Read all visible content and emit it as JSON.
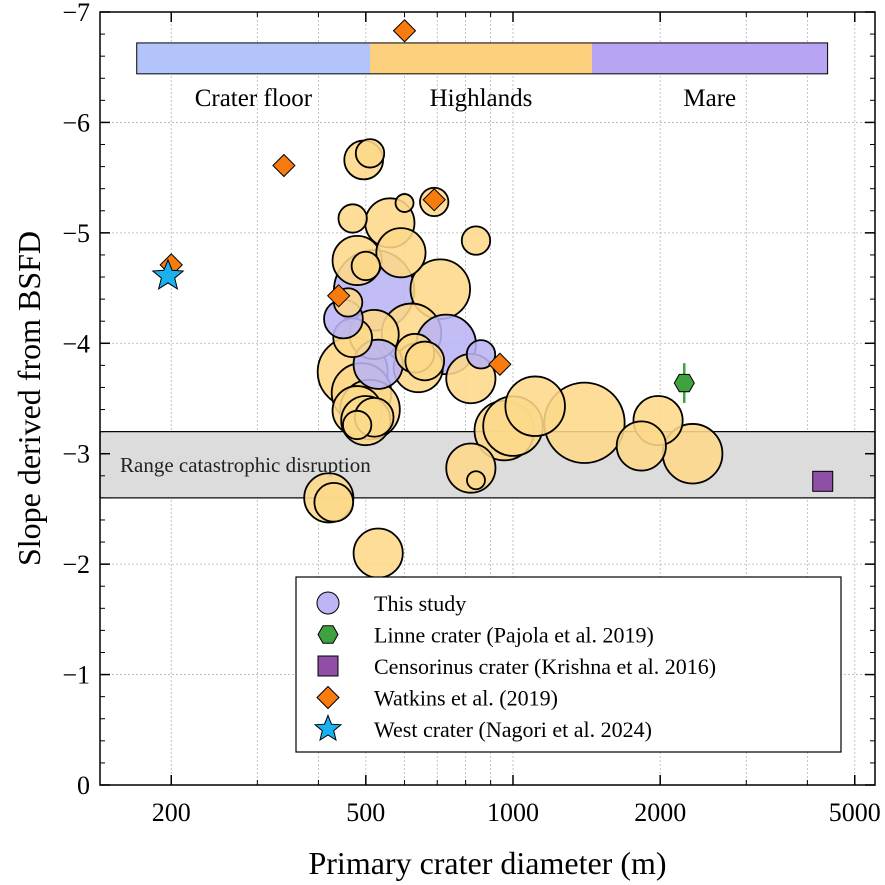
{
  "chart_data": {
    "type": "scatter",
    "title": "",
    "xlabel": "Primary crater diameter (m)",
    "ylabel": "Slope derived from BSFD",
    "xscale": "log",
    "xlim": [
      143,
      5500
    ],
    "ylim": [
      0,
      -7
    ],
    "y_inverted": true,
    "grid": true,
    "xticks": [
      200,
      500,
      1000,
      2000,
      5000
    ],
    "xtick_labels": [
      "200",
      "500",
      "1000",
      "2000",
      "5000"
    ],
    "yticks": [
      0,
      -1,
      -2,
      -3,
      -4,
      -5,
      -6,
      -7
    ],
    "ytick_labels": [
      "0",
      "−1",
      "−2",
      "−3",
      "−4",
      "−5",
      "−6",
      "−7"
    ],
    "terrain_bands": [
      {
        "label": "Crater floor",
        "x_range": [
          170,
          510
        ],
        "color": "#b3c4fb"
      },
      {
        "label": "Highlands",
        "x_range": [
          510,
          1450
        ],
        "color": "#fdd07e"
      },
      {
        "label": "Mare",
        "x_range": [
          1450,
          4400
        ],
        "color": "#b7a4f3"
      }
    ],
    "terrain_band_y_range": [
      -6.44,
      -6.72
    ],
    "catastrophic_range": {
      "label": "Range catastrophic disruption",
      "y_range": [
        -2.6,
        -3.2
      ],
      "color": "#dcdcdc"
    },
    "series": [
      {
        "name": "This study",
        "marker": "circle",
        "points": [
          {
            "x": 510,
            "y": -5.72,
            "size": 1,
            "category": "Highlands"
          },
          {
            "x": 495,
            "y": -5.66,
            "size": 2,
            "category": "Highlands"
          },
          {
            "x": 600,
            "y": -5.27,
            "size": 0,
            "category": "Highlands"
          },
          {
            "x": 470,
            "y": -5.13,
            "size": 1,
            "category": "Highlands"
          },
          {
            "x": 690,
            "y": -5.28,
            "size": 1,
            "category": "Highlands"
          },
          {
            "x": 560,
            "y": -5.09,
            "size": 3,
            "category": "Highlands"
          },
          {
            "x": 840,
            "y": -4.93,
            "size": 1,
            "category": "Highlands"
          },
          {
            "x": 480,
            "y": -4.75,
            "size": 3,
            "category": "Highlands"
          },
          {
            "x": 590,
            "y": -4.82,
            "size": 3,
            "category": "Highlands"
          },
          {
            "x": 500,
            "y": -4.7,
            "size": 1,
            "category": "Highlands"
          },
          {
            "x": 710,
            "y": -4.49,
            "size": 4,
            "category": "Highlands"
          },
          {
            "x": 460,
            "y": -4.37,
            "size": 1,
            "category": "Highlands"
          },
          {
            "x": 470,
            "y": -4.05,
            "size": 2,
            "category": "Highlands"
          },
          {
            "x": 520,
            "y": -4.08,
            "size": 3,
            "category": "Highlands"
          },
          {
            "x": 620,
            "y": -4.09,
            "size": 4,
            "category": "Highlands"
          },
          {
            "x": 630,
            "y": -3.91,
            "size": 2,
            "category": "Highlands"
          },
          {
            "x": 660,
            "y": -3.84,
            "size": 2,
            "category": "Highlands"
          },
          {
            "x": 640,
            "y": -3.78,
            "size": 3,
            "category": "Highlands"
          },
          {
            "x": 470,
            "y": -3.74,
            "size": 5,
            "category": "Highlands"
          },
          {
            "x": 490,
            "y": -3.55,
            "size": 4,
            "category": "Highlands"
          },
          {
            "x": 480,
            "y": -3.39,
            "size": 3,
            "category": "Highlands"
          },
          {
            "x": 500,
            "y": -3.3,
            "size": 3,
            "category": "Highlands"
          },
          {
            "x": 510,
            "y": -3.4,
            "size": 4,
            "category": "Highlands"
          },
          {
            "x": 520,
            "y": -3.33,
            "size": 2,
            "category": "Highlands"
          },
          {
            "x": 480,
            "y": -3.26,
            "size": 1,
            "category": "Highlands"
          },
          {
            "x": 820,
            "y": -3.68,
            "size": 3,
            "category": "Highlands"
          },
          {
            "x": 960,
            "y": -3.21,
            "size": 4,
            "category": "Highlands"
          },
          {
            "x": 1000,
            "y": -3.25,
            "size": 4,
            "category": "Highlands"
          },
          {
            "x": 1110,
            "y": -3.43,
            "size": 4,
            "category": "Highlands"
          },
          {
            "x": 1400,
            "y": -3.28,
            "size": 6,
            "category": "Mare"
          },
          {
            "x": 1980,
            "y": -3.3,
            "size": 3,
            "category": "Mare"
          },
          {
            "x": 1830,
            "y": -3.07,
            "size": 3,
            "category": "Mare"
          },
          {
            "x": 2330,
            "y": -3.0,
            "size": 4,
            "category": "Mare"
          },
          {
            "x": 820,
            "y": -2.87,
            "size": 3,
            "category": "Highlands"
          },
          {
            "x": 840,
            "y": -2.76,
            "size": 0,
            "category": "Highlands"
          },
          {
            "x": 420,
            "y": -2.6,
            "size": 3,
            "category": "Highlands"
          },
          {
            "x": 430,
            "y": -2.56,
            "size": 2,
            "category": "Highlands"
          },
          {
            "x": 530,
            "y": -2.1,
            "size": 3,
            "category": "Highlands"
          },
          {
            "x": 520,
            "y": -4.48,
            "size": 6,
            "category": "Crater floor"
          },
          {
            "x": 450,
            "y": -4.22,
            "size": 2,
            "category": "Crater floor"
          },
          {
            "x": 730,
            "y": -3.99,
            "size": 4,
            "category": "Crater floor"
          },
          {
            "x": 530,
            "y": -3.81,
            "size": 3,
            "category": "Crater floor"
          },
          {
            "x": 860,
            "y": -3.9,
            "size": 1,
            "category": "Crater floor"
          }
        ]
      },
      {
        "name": "Linne crater (Pajola et al. 2019)",
        "marker": "hexagon",
        "color": "#3ea23e",
        "points": [
          {
            "x": 2240,
            "y": -3.64,
            "yerr": 0.18
          }
        ]
      },
      {
        "name": "Censorinus crater (Krishna et al. 2016)",
        "marker": "square",
        "color": "#8f4fa6",
        "points": [
          {
            "x": 4300,
            "y": -2.75
          }
        ]
      },
      {
        "name": "Watkins et al. (2019)",
        "marker": "diamond",
        "color": "#f87b0e",
        "points": [
          {
            "x": 600,
            "y": -6.83
          },
          {
            "x": 340,
            "y": -5.61
          },
          {
            "x": 690,
            "y": -5.3
          },
          {
            "x": 200,
            "y": -4.71
          },
          {
            "x": 440,
            "y": -4.43
          },
          {
            "x": 940,
            "y": -3.81
          }
        ]
      },
      {
        "name": "West crater (Nagori et al. 2024)",
        "marker": "star",
        "color": "#1bb0ef",
        "points": [
          {
            "x": 197,
            "y": -4.61
          }
        ]
      }
    ],
    "legend": {
      "position": "lower-right",
      "entries": [
        {
          "label": "This study",
          "marker": "circle",
          "color": "#bdb6f5"
        },
        {
          "label": "Linne crater (Pajola et al. 2019)",
          "marker": "hexagon",
          "color": "#3ea23e"
        },
        {
          "label": "Censorinus crater (Krishna et al. 2016)",
          "marker": "square",
          "color": "#8f4fa6"
        },
        {
          "label": "Watkins et al. (2019)",
          "marker": "diamond",
          "color": "#f87b0e"
        },
        {
          "label": "West crater (Nagori et al. 2024)",
          "marker": "star",
          "color": "#1bb0ef"
        }
      ]
    },
    "colors": {
      "highlands_circle": "#fdd88a",
      "crater_floor_circle": "#b9b4f4",
      "mare_circle": "#fdd88a"
    }
  }
}
